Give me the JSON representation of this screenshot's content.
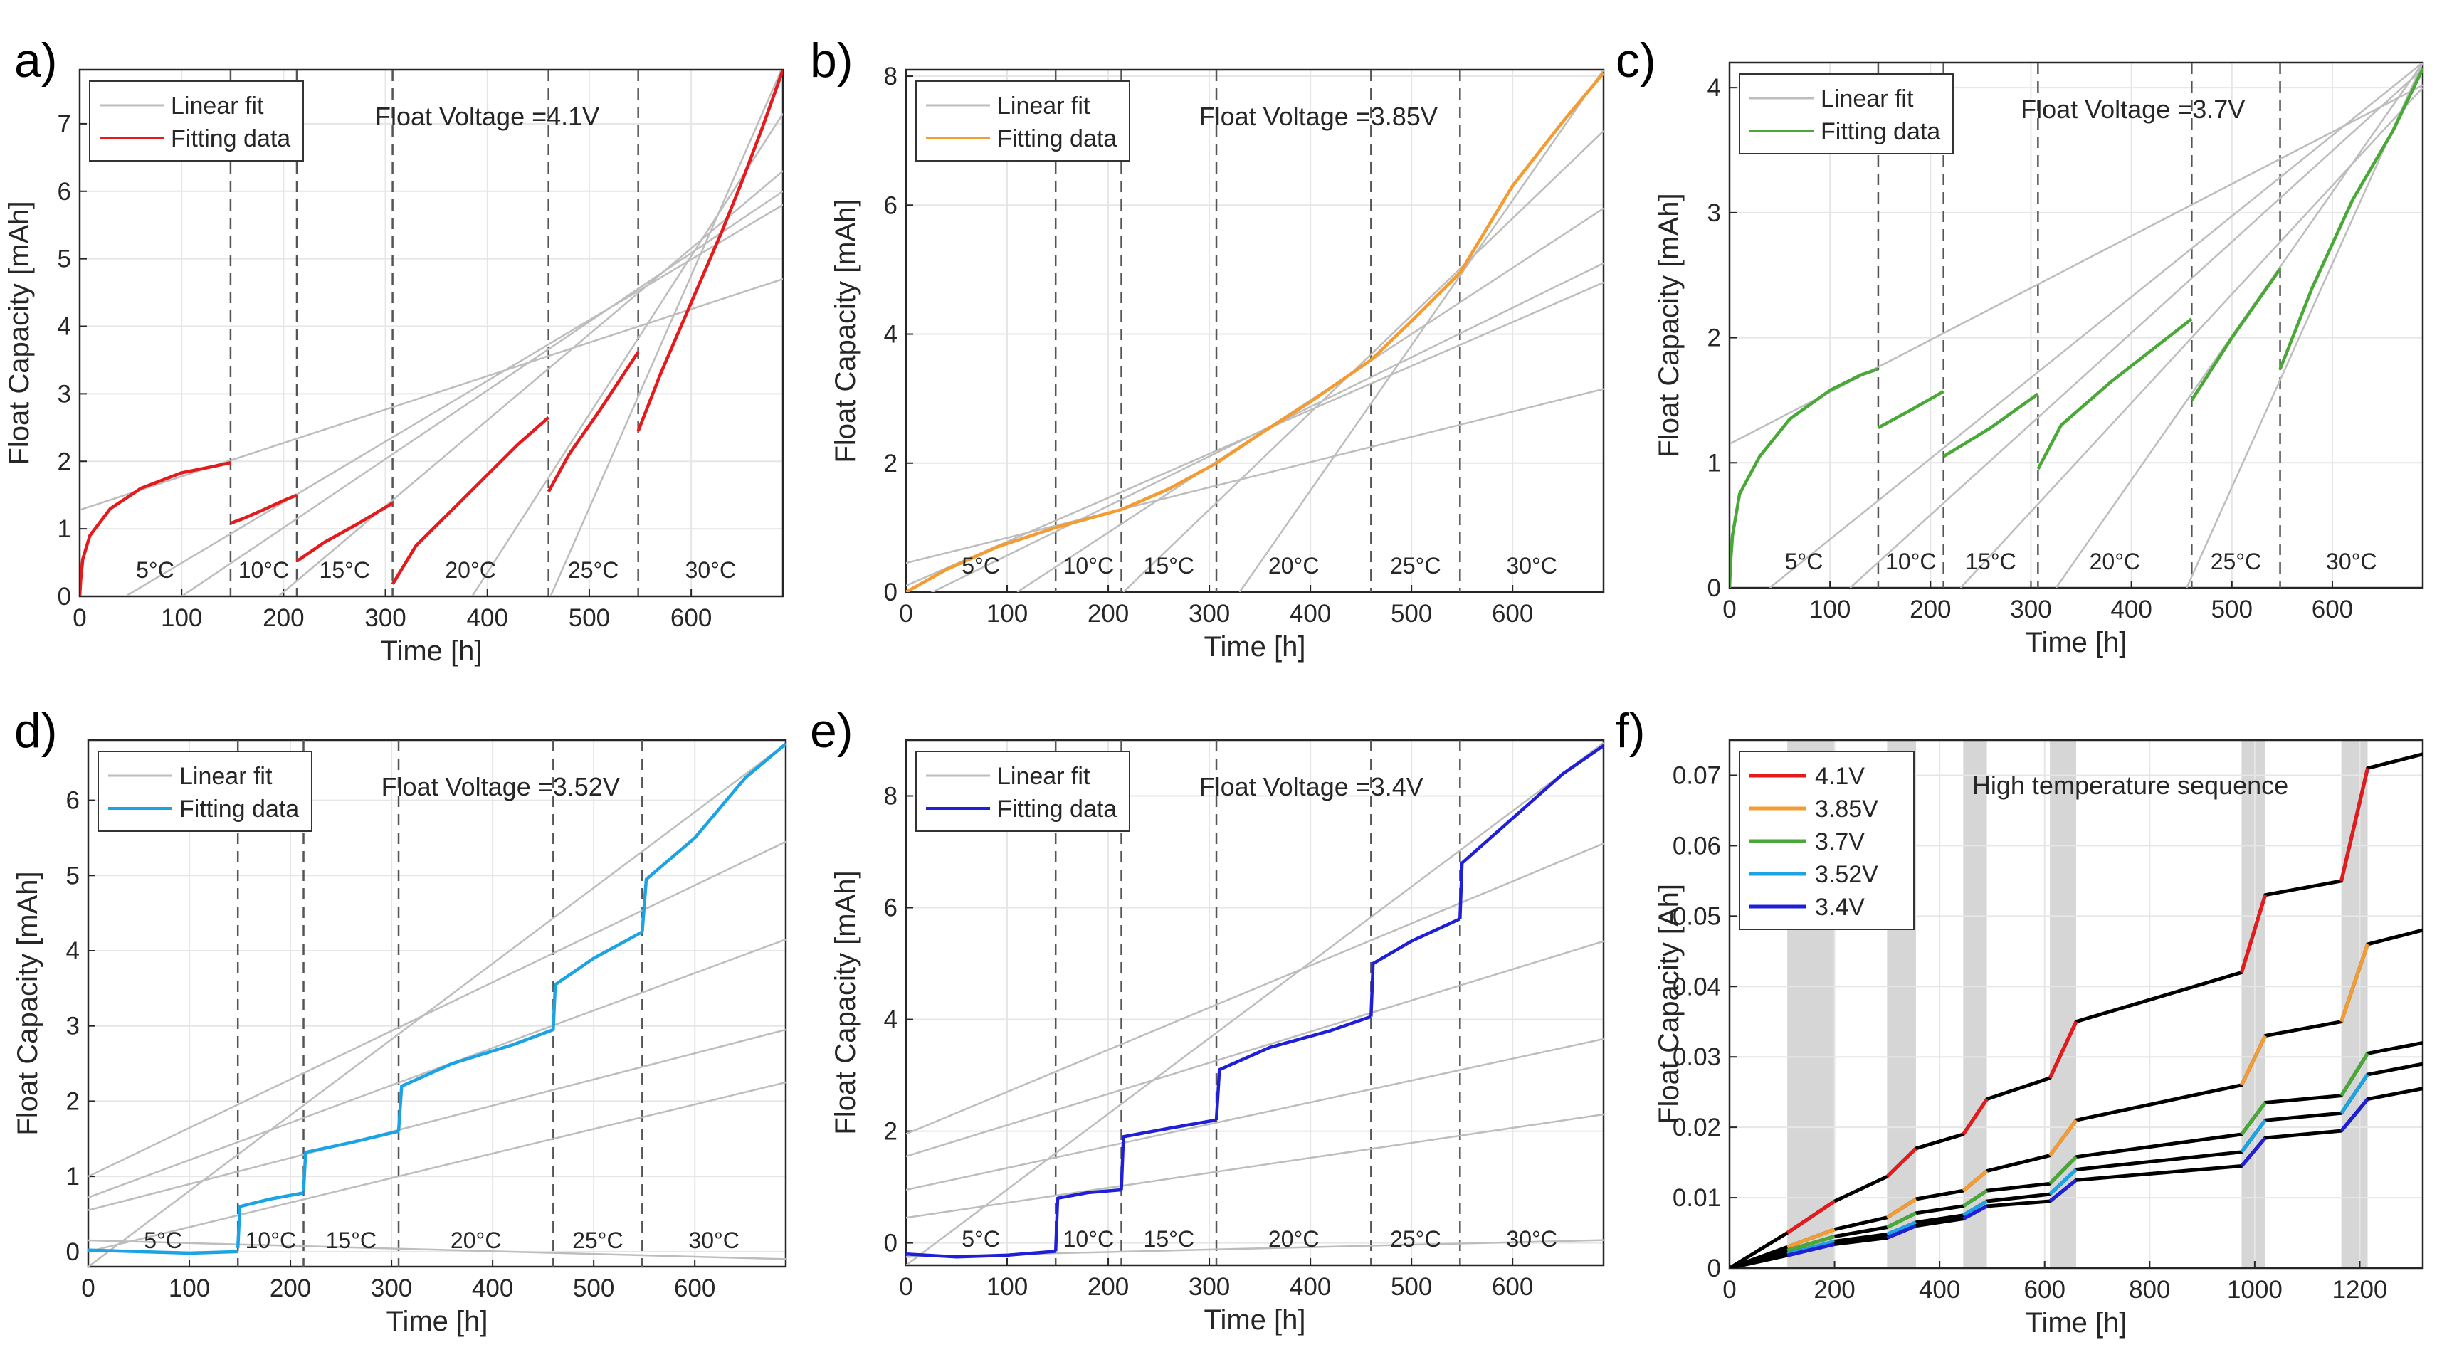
{
  "figure": {
    "panels": [
      "a",
      "b",
      "c",
      "d",
      "e"
    ],
    "xlabel": "Time [h]",
    "ylabel": "Float Capacity [mAh]",
    "legend_linear": "Linear fit",
    "legend_fitting": "Fitting data",
    "temperatures": [
      "5°C",
      "10°C",
      "15°C",
      "20°C",
      "25°C",
      "30°C"
    ],
    "boundaries": [
      148,
      213,
      307,
      460,
      548
    ],
    "xlim": [
      0,
      690
    ],
    "xticks": [
      0,
      100,
      200,
      300,
      400,
      500,
      600
    ]
  },
  "chart_data": [
    {
      "id": "a",
      "panel_label": "a)",
      "type": "line",
      "title": "Float Voltage =4.1V",
      "xlabel": "Time [h]",
      "ylabel": "Float Capacity [mAh]",
      "xlim": [
        0,
        690
      ],
      "ylim": [
        0,
        7.8
      ],
      "xticks": [
        0,
        100,
        200,
        300,
        400,
        500,
        600
      ],
      "yticks": [
        0,
        1,
        2,
        3,
        4,
        5,
        6,
        7
      ],
      "color": "#e41a1c",
      "legend": [
        "Linear fit",
        "Fitting data"
      ],
      "segments": [
        {
          "label": "5°C",
          "t": [
            0,
            1,
            3,
            10,
            30,
            60,
            100,
            130,
            148
          ],
          "v": [
            0,
            0.25,
            0.55,
            0.9,
            1.3,
            1.6,
            1.83,
            1.92,
            1.98
          ]
        },
        {
          "label": "10°C",
          "t": [
            148,
            160,
            180,
            200,
            213
          ],
          "v": [
            1.08,
            1.15,
            1.28,
            1.42,
            1.5
          ]
        },
        {
          "label": "15°C",
          "t": [
            213,
            240,
            270,
            307
          ],
          "v": [
            0.52,
            0.8,
            1.05,
            1.38
          ]
        },
        {
          "label": "20°C",
          "t": [
            307,
            330,
            360,
            400,
            430,
            460
          ],
          "v": [
            0.18,
            0.75,
            1.2,
            1.8,
            2.25,
            2.65
          ]
        },
        {
          "label": "25°C",
          "t": [
            460,
            480,
            510,
            548
          ],
          "v": [
            1.55,
            2.1,
            2.75,
            3.62
          ]
        },
        {
          "label": "30°C",
          "t": [
            548,
            570,
            600,
            630,
            650,
            670,
            690
          ],
          "v": [
            2.45,
            3.3,
            4.35,
            5.4,
            6.15,
            6.95,
            7.8
          ]
        }
      ],
      "fits": [
        {
          "t0": 0,
          "v0": 1.28,
          "t1": 690,
          "v1": 4.7
        },
        {
          "t0": 45,
          "v0": 0,
          "t1": 690,
          "v1": 5.8
        },
        {
          "t0": 100,
          "v0": 0,
          "t1": 690,
          "v1": 6.0
        },
        {
          "t0": 195,
          "v0": 0,
          "t1": 690,
          "v1": 6.3
        },
        {
          "t0": 385,
          "v0": 0,
          "t1": 690,
          "v1": 7.15
        },
        {
          "t0": 462,
          "v0": 0,
          "t1": 690,
          "v1": 7.85
        }
      ]
    },
    {
      "id": "b",
      "panel_label": "b)",
      "type": "line",
      "title": "Float Voltage =3.85V",
      "xlabel": "Time [h]",
      "ylabel": "Float Capacity [mAh]",
      "xlim": [
        0,
        690
      ],
      "ylim": [
        0,
        8.1
      ],
      "xticks": [
        0,
        100,
        200,
        300,
        400,
        500,
        600
      ],
      "yticks": [
        0,
        2,
        4,
        6,
        8
      ],
      "color": "#f39c34",
      "legend": [
        "Linear fit",
        "Fitting data"
      ],
      "segments": [
        {
          "label": "5°C",
          "t": [
            0,
            40,
            90,
            148
          ],
          "v": [
            0,
            0.35,
            0.7,
            1.0
          ]
        },
        {
          "label": "10°C",
          "t": [
            148,
            213
          ],
          "v": [
            1.0,
            1.28
          ]
        },
        {
          "label": "15°C",
          "t": [
            213,
            260,
            307
          ],
          "v": [
            1.28,
            1.6,
            2.0
          ]
        },
        {
          "label": "20°C",
          "t": [
            307,
            350,
            400,
            460
          ],
          "v": [
            2.0,
            2.45,
            2.95,
            3.6
          ]
        },
        {
          "label": "25°C",
          "t": [
            460,
            500,
            548
          ],
          "v": [
            3.6,
            4.2,
            4.95
          ]
        },
        {
          "label": "30°C",
          "t": [
            548,
            600,
            650,
            690
          ],
          "v": [
            4.95,
            6.3,
            7.3,
            8.05
          ]
        }
      ],
      "fits": [
        {
          "t0": 0,
          "v0": 0.45,
          "t1": 690,
          "v1": 3.15
        },
        {
          "t0": 0,
          "v0": 0.1,
          "t1": 690,
          "v1": 4.8
        },
        {
          "t0": 0,
          "v0": -0.2,
          "t1": 690,
          "v1": 5.1
        },
        {
          "t0": 110,
          "v0": 0,
          "t1": 690,
          "v1": 5.95
        },
        {
          "t0": 215,
          "v0": 0,
          "t1": 690,
          "v1": 7.15
        },
        {
          "t0": 330,
          "v0": 0,
          "t1": 690,
          "v1": 8.1
        }
      ]
    },
    {
      "id": "c",
      "panel_label": "c)",
      "type": "line",
      "title": "Float Voltage =3.7V",
      "xlabel": "Time [h]",
      "ylabel": "Float Capacity [mAh]",
      "xlim": [
        0,
        690
      ],
      "ylim": [
        0,
        4.2
      ],
      "xticks": [
        0,
        100,
        200,
        300,
        400,
        500,
        600
      ],
      "yticks": [
        0,
        1,
        2,
        3,
        4
      ],
      "color": "#4aa838",
      "legend": [
        "Linear fit",
        "Fitting data"
      ],
      "segments": [
        {
          "label": "5°C",
          "t": [
            0,
            1,
            3,
            10,
            30,
            60,
            100,
            130,
            148
          ],
          "v": [
            0,
            0.2,
            0.42,
            0.75,
            1.05,
            1.35,
            1.58,
            1.7,
            1.75
          ]
        },
        {
          "label": "10°C",
          "t": [
            148,
            180,
            213
          ],
          "v": [
            1.28,
            1.42,
            1.57
          ]
        },
        {
          "label": "15°C",
          "t": [
            213,
            260,
            307
          ],
          "v": [
            1.05,
            1.28,
            1.55
          ]
        },
        {
          "label": "20°C",
          "t": [
            307,
            330,
            380,
            420,
            460
          ],
          "v": [
            0.95,
            1.3,
            1.65,
            1.9,
            2.15
          ]
        },
        {
          "label": "25°C",
          "t": [
            460,
            500,
            548
          ],
          "v": [
            1.5,
            2.0,
            2.55
          ]
        },
        {
          "label": "30°C",
          "t": [
            548,
            580,
            620,
            660,
            690
          ],
          "v": [
            1.75,
            2.4,
            3.1,
            3.65,
            4.15
          ]
        }
      ],
      "fits": [
        {
          "t0": 0,
          "v0": 1.15,
          "t1": 690,
          "v1": 4.02
        },
        {
          "t0": 40,
          "v0": 0,
          "t1": 690,
          "v1": 4.2
        },
        {
          "t0": 120,
          "v0": 0,
          "t1": 690,
          "v1": 4.15
        },
        {
          "t0": 230,
          "v0": 0,
          "t1": 690,
          "v1": 4.0
        },
        {
          "t0": 325,
          "v0": 0,
          "t1": 690,
          "v1": 4.2
        },
        {
          "t0": 455,
          "v0": 0,
          "t1": 690,
          "v1": 4.2
        }
      ]
    },
    {
      "id": "d",
      "panel_label": "d)",
      "type": "line",
      "title": "Float Voltage =3.52V",
      "xlabel": "Time [h]",
      "ylabel": "Float Capacity [mAh]",
      "xlim": [
        0,
        690
      ],
      "ylim": [
        -0.2,
        6.8
      ],
      "xticks": [
        0,
        100,
        200,
        300,
        400,
        500,
        600
      ],
      "yticks": [
        0,
        1,
        2,
        3,
        4,
        5,
        6
      ],
      "color": "#1ba3e4",
      "legend": [
        "Linear fit",
        "Fitting data"
      ],
      "segments": [
        {
          "label": "5°C",
          "t": [
            0,
            50,
            100,
            148
          ],
          "v": [
            0.02,
            0.0,
            -0.02,
            0.0
          ]
        },
        {
          "label": "10°C",
          "t": [
            148,
            150,
            180,
            213
          ],
          "v": [
            0.05,
            0.6,
            0.7,
            0.78
          ]
        },
        {
          "label": "15°C",
          "t": [
            213,
            215,
            260,
            307
          ],
          "v": [
            0.8,
            1.32,
            1.45,
            1.6
          ]
        },
        {
          "label": "20°C",
          "t": [
            307,
            310,
            360,
            420,
            460
          ],
          "v": [
            1.6,
            2.2,
            2.5,
            2.75,
            2.95
          ]
        },
        {
          "label": "25°C",
          "t": [
            460,
            462,
            500,
            548
          ],
          "v": [
            2.95,
            3.55,
            3.9,
            4.25
          ]
        },
        {
          "label": "30°C",
          "t": [
            548,
            552,
            600,
            650,
            690
          ],
          "v": [
            4.25,
            4.95,
            5.5,
            6.3,
            6.75
          ]
        }
      ],
      "fits": [
        {
          "t0": 0,
          "v0": 0.15,
          "t1": 690,
          "v1": -0.1
        },
        {
          "t0": 0,
          "v0": 0.0,
          "t1": 690,
          "v1": 2.25
        },
        {
          "t0": 0,
          "v0": 0.55,
          "t1": 690,
          "v1": 2.95
        },
        {
          "t0": 0,
          "v0": 0.72,
          "t1": 690,
          "v1": 4.15
        },
        {
          "t0": 0,
          "v0": 1.0,
          "t1": 690,
          "v1": 5.45
        },
        {
          "t0": 0,
          "v0": -0.2,
          "t1": 690,
          "v1": 6.75
        }
      ]
    },
    {
      "id": "e",
      "panel_label": "e)",
      "type": "line",
      "title": "Float Voltage =3.4V",
      "xlabel": "Time [h]",
      "ylabel": "Float Capacity [mAh]",
      "xlim": [
        0,
        690
      ],
      "ylim": [
        -0.4,
        9.0
      ],
      "xticks": [
        0,
        100,
        200,
        300,
        400,
        500,
        600
      ],
      "yticks": [
        0,
        2,
        4,
        6,
        8
      ],
      "color": "#1f1fd8",
      "legend": [
        "Linear fit",
        "Fitting data"
      ],
      "segments": [
        {
          "label": "5°C",
          "t": [
            0,
            50,
            100,
            148
          ],
          "v": [
            -0.2,
            -0.25,
            -0.22,
            -0.15
          ]
        },
        {
          "label": "10°C",
          "t": [
            148,
            150,
            180,
            213
          ],
          "v": [
            -0.15,
            0.8,
            0.9,
            0.95
          ]
        },
        {
          "label": "15°C",
          "t": [
            213,
            215,
            260,
            307
          ],
          "v": [
            0.95,
            1.9,
            2.05,
            2.2
          ]
        },
        {
          "label": "20°C",
          "t": [
            307,
            310,
            360,
            420,
            460
          ],
          "v": [
            2.2,
            3.1,
            3.5,
            3.8,
            4.05
          ]
        },
        {
          "label": "25°C",
          "t": [
            460,
            462,
            500,
            548
          ],
          "v": [
            4.05,
            5.0,
            5.4,
            5.8
          ]
        },
        {
          "label": "30°C",
          "t": [
            548,
            550,
            600,
            650,
            690
          ],
          "v": [
            5.8,
            6.8,
            7.6,
            8.4,
            8.9
          ]
        }
      ],
      "fits": [
        {
          "t0": 0,
          "v0": -0.25,
          "t1": 690,
          "v1": 0.05
        },
        {
          "t0": 0,
          "v0": 0.45,
          "t1": 690,
          "v1": 2.3
        },
        {
          "t0": 0,
          "v0": 0.95,
          "t1": 690,
          "v1": 3.65
        },
        {
          "t0": 0,
          "v0": 1.55,
          "t1": 690,
          "v1": 5.4
        },
        {
          "t0": 0,
          "v0": 1.95,
          "t1": 690,
          "v1": 7.15
        },
        {
          "t0": 0,
          "v0": -0.4,
          "t1": 690,
          "v1": 8.95
        }
      ]
    },
    {
      "id": "f",
      "panel_label": "f)",
      "type": "line",
      "title": "High temperature sequence",
      "xlabel": "Time [h]",
      "ylabel": "Float Capacity [Ah]",
      "xlim": [
        0,
        1320
      ],
      "ylim": [
        0,
        0.075
      ],
      "xticks": [
        0,
        200,
        400,
        600,
        800,
        1000,
        1200
      ],
      "yticks": [
        0,
        0.01,
        0.02,
        0.03,
        0.04,
        0.05,
        0.06,
        0.07
      ],
      "shaded_bands": [
        [
          110,
          200
        ],
        [
          300,
          355
        ],
        [
          445,
          490
        ],
        [
          610,
          660
        ],
        [
          975,
          1020
        ],
        [
          1165,
          1215
        ]
      ],
      "series": [
        {
          "name": "4.1V",
          "color": "#e41a1c",
          "t": [
            0,
            110,
            200,
            300,
            355,
            445,
            490,
            610,
            660,
            975,
            1020,
            1165,
            1215,
            1320
          ],
          "v": [
            0,
            0.005,
            0.0095,
            0.013,
            0.017,
            0.019,
            0.024,
            0.027,
            0.035,
            0.042,
            0.053,
            0.055,
            0.071,
            0.073
          ]
        },
        {
          "name": "3.85V",
          "color": "#f39c34",
          "t": [
            0,
            110,
            200,
            300,
            355,
            445,
            490,
            610,
            660,
            975,
            1020,
            1165,
            1215,
            1320
          ],
          "v": [
            0,
            0.003,
            0.0055,
            0.0072,
            0.0098,
            0.011,
            0.0138,
            0.016,
            0.021,
            0.026,
            0.033,
            0.035,
            0.046,
            0.048
          ]
        },
        {
          "name": "3.7V",
          "color": "#4aa838",
          "t": [
            0,
            110,
            200,
            300,
            355,
            445,
            490,
            610,
            660,
            975,
            1020,
            1165,
            1215,
            1320
          ],
          "v": [
            0,
            0.0025,
            0.0045,
            0.0058,
            0.0078,
            0.0088,
            0.011,
            0.012,
            0.0158,
            0.019,
            0.0235,
            0.0245,
            0.0305,
            0.032
          ]
        },
        {
          "name": "3.52V",
          "color": "#1ba3e4",
          "t": [
            0,
            110,
            200,
            300,
            355,
            445,
            490,
            610,
            660,
            975,
            1020,
            1165,
            1215,
            1320
          ],
          "v": [
            0,
            0.002,
            0.0038,
            0.0048,
            0.0065,
            0.0075,
            0.0095,
            0.0105,
            0.014,
            0.0165,
            0.021,
            0.022,
            0.0275,
            0.029
          ]
        },
        {
          "name": "3.4V",
          "color": "#1f1fd8",
          "t": [
            0,
            110,
            200,
            300,
            355,
            445,
            490,
            610,
            660,
            975,
            1020,
            1165,
            1215,
            1320
          ],
          "v": [
            0,
            0.0018,
            0.0034,
            0.0043,
            0.006,
            0.007,
            0.0088,
            0.0095,
            0.0125,
            0.0145,
            0.0185,
            0.0195,
            0.024,
            0.0255
          ]
        }
      ]
    }
  ]
}
